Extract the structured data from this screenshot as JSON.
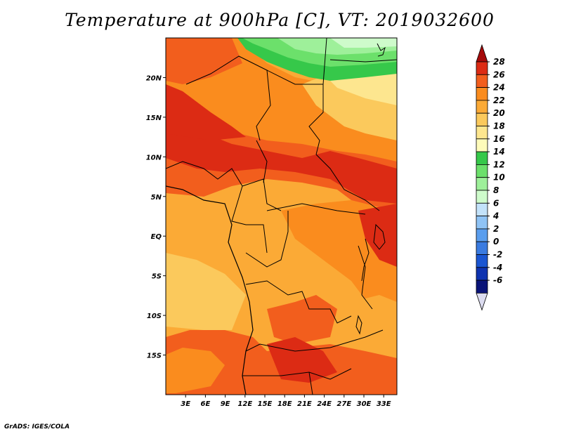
{
  "title": "Temperature at 900hPa [C], VT: 2019032600",
  "credit": "GrADS: IGES/COLA",
  "map": {
    "region": "Central and Southern Africa",
    "lon_range": [
      0,
      35
    ],
    "lat_range": [
      -20,
      25
    ],
    "x_ticks": [
      {
        "value": 3,
        "label": "3E"
      },
      {
        "value": 6,
        "label": "6E"
      },
      {
        "value": 9,
        "label": "9E"
      },
      {
        "value": 12,
        "label": "12E"
      },
      {
        "value": 15,
        "label": "15E"
      },
      {
        "value": 18,
        "label": "18E"
      },
      {
        "value": 21,
        "label": "21E"
      },
      {
        "value": 24,
        "label": "24E"
      },
      {
        "value": 27,
        "label": "27E"
      },
      {
        "value": 30,
        "label": "30E"
      },
      {
        "value": 33,
        "label": "33E"
      }
    ],
    "y_ticks": [
      {
        "value": 20,
        "label": "20N"
      },
      {
        "value": 15,
        "label": "15N"
      },
      {
        "value": 10,
        "label": "10N"
      },
      {
        "value": 5,
        "label": "5N"
      },
      {
        "value": 0,
        "label": "EQ"
      },
      {
        "value": -5,
        "label": "5S"
      },
      {
        "value": -10,
        "label": "10S"
      },
      {
        "value": -15,
        "label": "15S"
      }
    ]
  },
  "colorbar": {
    "levels": [
      "28",
      "26",
      "24",
      "22",
      "20",
      "18",
      "16",
      "14",
      "12",
      "10",
      "8",
      "6",
      "4",
      "2",
      "0",
      "-2",
      "-4",
      "-6"
    ],
    "colors": [
      "#a50a0a",
      "#dc2b14",
      "#f25e1d",
      "#fa8c1e",
      "#fbaa36",
      "#fbc95c",
      "#fde68f",
      "#fefbba",
      "#36c84a",
      "#6ce06b",
      "#9ef09a",
      "#cefbcb",
      "#c3e2fa",
      "#8fc3f5",
      "#5a9eee",
      "#3a7be0",
      "#1a56d2",
      "#0e33b0",
      "#0a1478",
      "#dcdcf0"
    ]
  }
}
